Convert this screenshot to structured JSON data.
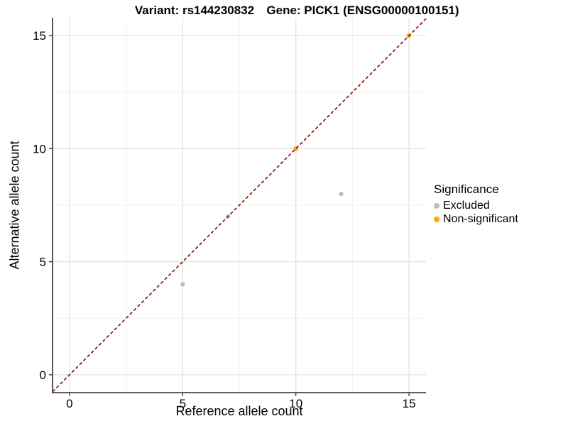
{
  "titles": {
    "variant": "Variant: rs144230832",
    "gene": "Gene: PICK1 (ENSG00000100151)"
  },
  "chart_data": {
    "type": "scatter",
    "xlabel": "Reference allele count",
    "ylabel": "Alternative allele count",
    "xlim": [
      -0.75,
      15.75
    ],
    "ylim": [
      -0.79,
      15.79
    ],
    "xticks": [
      0,
      5,
      10,
      15
    ],
    "yticks": [
      0,
      5,
      10,
      15
    ],
    "minor_xticks": [
      2.5,
      7.5,
      12.5
    ],
    "minor_yticks": [
      2.5,
      7.5,
      12.5
    ],
    "grid": true,
    "series": [
      {
        "name": "Excluded",
        "color": "#BEBEBE",
        "points": [
          [
            5,
            4
          ],
          [
            7,
            7
          ],
          [
            12,
            8
          ]
        ]
      },
      {
        "name": "Non-significant",
        "color": "#FFA500",
        "points": [
          [
            10,
            10
          ],
          [
            15,
            15
          ]
        ]
      }
    ],
    "identity_line": {
      "style": "dashed",
      "color": "#8B0000",
      "from": [
        -0.75,
        -0.75
      ],
      "to": [
        15.75,
        15.75
      ]
    },
    "legend": {
      "title": "Significance",
      "position": "right"
    },
    "style": {
      "grid_major_color": "#E3E3E3",
      "grid_minor_color": "#F0F0F0",
      "axis_color": "#2A2A2A",
      "point_radius": 3.2
    }
  }
}
